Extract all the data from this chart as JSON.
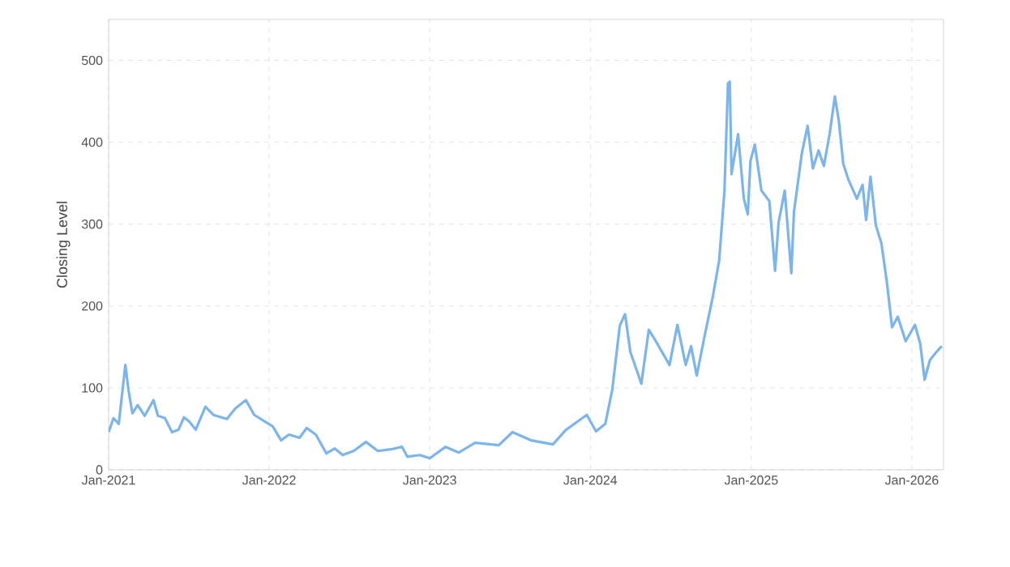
{
  "chart_data": {
    "type": "line",
    "ylabel": "Closing Level",
    "xlim": [
      "2021-01-01",
      "2026-03-14"
    ],
    "ylim": [
      0,
      550
    ],
    "xticks": [
      {
        "value": "2021-01-01",
        "label": "Jan-2021"
      },
      {
        "value": "2022-01-01",
        "label": "Jan-2022"
      },
      {
        "value": "2023-01-01",
        "label": "Jan-2023"
      },
      {
        "value": "2024-01-01",
        "label": "Jan-2024"
      },
      {
        "value": "2025-01-01",
        "label": "Jan-2025"
      },
      {
        "value": "2026-01-01",
        "label": "Jan-2026"
      }
    ],
    "yticks": [
      0,
      100,
      200,
      300,
      400,
      500
    ],
    "grid": true,
    "marker": "none",
    "line_style": "solid",
    "series": [
      {
        "color": "#7cb5ec",
        "x": [
          "2021-01-01",
          "2021-01-12",
          "2021-01-24",
          "2021-02-08",
          "2021-02-15",
          "2021-02-24",
          "2021-03-08",
          "2021-03-24",
          "2021-04-13",
          "2021-04-23",
          "2021-05-09",
          "2021-05-25",
          "2021-06-09",
          "2021-06-21",
          "2021-07-03",
          "2021-07-18",
          "2021-08-09",
          "2021-08-27",
          "2021-09-27",
          "2021-10-16",
          "2021-11-09",
          "2021-11-28",
          "2021-12-22",
          "2022-01-09",
          "2022-01-28",
          "2022-02-15",
          "2022-03-11",
          "2022-03-27",
          "2022-04-17",
          "2022-05-11",
          "2022-05-30",
          "2022-06-17",
          "2022-07-12",
          "2022-08-09",
          "2022-09-05",
          "2022-10-05",
          "2022-10-30",
          "2022-11-11",
          "2022-12-09",
          "2023-01-01",
          "2023-02-06",
          "2023-03-08",
          "2023-04-14",
          "2023-06-07",
          "2023-07-08",
          "2023-08-19",
          "2023-10-08",
          "2023-11-07",
          "2023-12-24",
          "2024-01-14",
          "2024-02-04",
          "2024-02-20",
          "2024-03-08",
          "2024-03-20",
          "2024-04-01",
          "2024-04-16",
          "2024-04-26",
          "2024-05-13",
          "2024-05-29",
          "2024-06-29",
          "2024-07-17",
          "2024-08-05",
          "2024-08-17",
          "2024-08-30",
          "2024-09-17",
          "2024-10-05",
          "2024-10-20",
          "2024-11-01",
          "2024-11-09",
          "2024-11-13",
          "2024-11-17",
          "2024-12-02",
          "2024-12-15",
          "2024-12-24",
          "2024-12-30",
          "2025-01-09",
          "2025-01-24",
          "2025-02-11",
          "2025-02-24",
          "2025-03-04",
          "2025-03-18",
          "2025-04-02",
          "2025-04-08",
          "2025-04-26",
          "2025-05-09",
          "2025-05-21",
          "2025-06-03",
          "2025-06-15",
          "2025-06-28",
          "2025-07-10",
          "2025-07-19",
          "2025-07-29",
          "2025-08-10",
          "2025-08-29",
          "2025-09-11",
          "2025-09-19",
          "2025-09-29",
          "2025-10-11",
          "2025-10-24",
          "2025-11-05",
          "2025-11-17",
          "2025-11-30",
          "2025-12-18",
          "2026-01-08",
          "2026-01-20",
          "2026-01-30",
          "2026-02-11",
          "2026-02-26",
          "2026-03-10"
        ],
        "values": [
          46,
          63,
          56,
          128,
          98,
          69,
          79,
          66,
          85,
          66,
          63,
          46,
          49,
          64,
          59,
          49,
          77,
          67,
          62,
          75,
          85,
          67,
          59,
          53,
          36,
          43,
          39,
          51,
          43,
          20,
          26,
          18,
          23,
          34,
          23,
          25,
          28,
          16,
          18,
          14,
          28,
          21,
          33,
          30,
          46,
          36,
          31,
          49,
          67,
          47,
          56,
          98,
          176,
          190,
          144,
          121,
          105,
          171,
          157,
          128,
          177,
          128,
          151,
          115,
          164,
          210,
          256,
          341,
          472,
          474,
          361,
          410,
          331,
          312,
          377,
          397,
          341,
          328,
          243,
          302,
          341,
          240,
          315,
          387,
          420,
          368,
          390,
          371,
          410,
          456,
          426,
          374,
          354,
          331,
          348,
          305,
          358,
          299,
          276,
          230,
          174,
          187,
          157,
          177,
          154,
          110,
          134,
          144,
          151
        ]
      }
    ]
  }
}
